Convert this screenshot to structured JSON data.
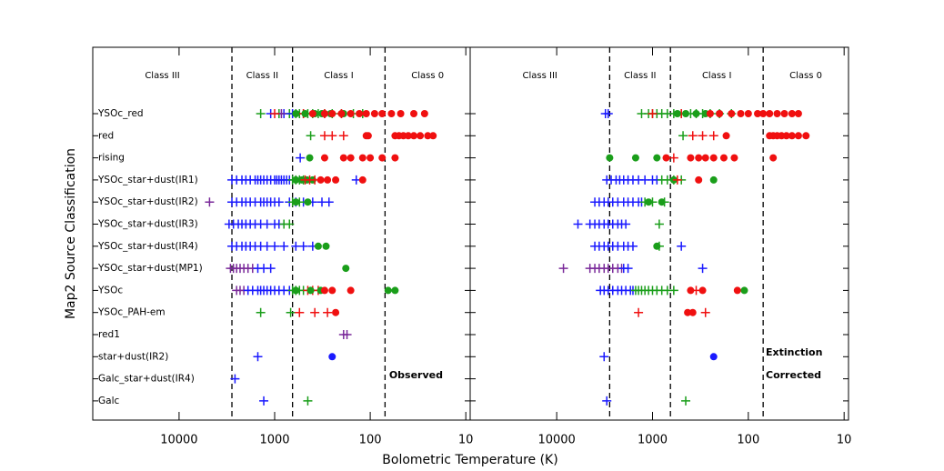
{
  "chart_data": {
    "type": "scatter",
    "x_label": "Bolometric Temperature (K)",
    "y_label": "Map2 Source Classification",
    "log_x": true,
    "xlim": [
      80000,
      9
    ],
    "xticks": [
      10000,
      1000,
      100,
      10
    ],
    "categories": [
      "YSOc_red",
      "red",
      "rising",
      "YSOc_star+dust(IR1)",
      "YSOc_star+dust(IR2)",
      "YSOc_star+dust(IR3)",
      "YSOc_star+dust(IR4)",
      "YSOc_star+dust(MP1)",
      "YSOc",
      "YSOc_PAH-em",
      "red1",
      "star+dust(IR2)",
      "Galc_star+dust(IR4)",
      "Galc"
    ],
    "class_boundaries": [
      2800,
      650,
      70
    ],
    "class_labels": [
      "Class III",
      "Class II",
      "Class I",
      "Class 0"
    ],
    "panels": [
      {
        "annotations": [
          "Observed"
        ],
        "rows": [
          [
            {
              "color": "#1a9e1a",
              "marker": "plus",
              "x": [
                1400,
                900,
                700,
                600,
                550,
                500,
                450,
                400,
                350,
                300,
                250,
                200,
                150,
                120
              ]
            },
            {
              "color": "#1a1aff",
              "marker": "plus",
              "x": [
                1100,
                800,
                650
              ]
            },
            {
              "color": "#7a2a9a",
              "marker": "plus",
              "x": [
                850
              ]
            },
            {
              "color": "#f01010",
              "marker": "plus",
              "x": [
                1000,
                500,
                300,
                200
              ]
            },
            {
              "color": "#1a9e1a",
              "marker": "circle",
              "x": [
                600,
                480,
                380,
                320,
                260,
                190
              ]
            },
            {
              "color": "#f01010",
              "marker": "circle",
              "x": [
                400,
                300,
                250,
                200,
                160,
                130,
                110,
                90,
                75,
                60,
                48,
                35,
                27
              ]
            }
          ],
          [
            {
              "color": "#1a9e1a",
              "marker": "plus",
              "x": [
                420
              ]
            },
            {
              "color": "#f01010",
              "marker": "plus",
              "x": [
                300,
                250,
                190
              ]
            },
            {
              "color": "#f01010",
              "marker": "circle",
              "x": [
                110,
                105,
                55,
                50,
                45,
                40,
                35,
                30,
                25,
                22
              ]
            }
          ],
          [
            {
              "color": "#1a1aff",
              "marker": "plus",
              "x": [
                540
              ]
            },
            {
              "color": "#1a9e1a",
              "marker": "circle",
              "x": [
                430
              ]
            },
            {
              "color": "#f01010",
              "marker": "circle",
              "x": [
                300,
                190,
                160,
                120,
                100,
                75,
                55
              ]
            }
          ],
          [
            {
              "color": "#1a1aff",
              "marker": "plus",
              "x": [
                2800,
                2500,
                2200,
                2000,
                1800,
                1600,
                1500,
                1400,
                1300,
                1200,
                1100,
                1000,
                950,
                900,
                850,
                800,
                750,
                700,
                140
              ]
            },
            {
              "color": "#1a9e1a",
              "marker": "plus",
              "x": [
                650,
                600,
                550,
                500
              ]
            },
            {
              "color": "#1a9e1a",
              "marker": "circle",
              "x": [
                600,
                520,
                460,
                400
              ]
            },
            {
              "color": "#f01010",
              "marker": "plus",
              "x": [
                480,
                430,
                380
              ]
            },
            {
              "color": "#f01010",
              "marker": "circle",
              "x": [
                330,
                280,
                230,
                120
              ]
            }
          ],
          [
            {
              "color": "#7a2a9a",
              "marker": "plus",
              "x": [
                4800
              ]
            },
            {
              "color": "#1a1aff",
              "marker": "plus",
              "x": [
                2800,
                2500,
                2200,
                2000,
                1800,
                1600,
                1400,
                1300,
                1200,
                1100,
                1000,
                900,
                700,
                600,
                500,
                400,
                320,
                270
              ]
            },
            {
              "color": "#1a9e1a",
              "marker": "plus",
              "x": [
                650,
                550
              ]
            },
            {
              "color": "#1a9e1a",
              "marker": "circle",
              "x": [
                600,
                450
              ]
            }
          ],
          [
            {
              "color": "#1a1aff",
              "marker": "plus",
              "x": [
                3000,
                2700,
                2400,
                2200,
                2000,
                1800,
                1600,
                1400,
                1200,
                1000,
                900
              ]
            },
            {
              "color": "#1a9e1a",
              "marker": "plus",
              "x": [
                800,
                700
              ]
            }
          ],
          [
            {
              "color": "#1a1aff",
              "marker": "plus",
              "x": [
                2800,
                2500,
                2200,
                2000,
                1800,
                1600,
                1400,
                1200,
                1000,
                800,
                600,
                500,
                400
              ]
            },
            {
              "color": "#1a9e1a",
              "marker": "circle",
              "x": [
                350,
                290
              ]
            }
          ],
          [
            {
              "color": "#7a2a9a",
              "marker": "plus",
              "x": [
                2900,
                2700,
                2500,
                2300,
                2100,
                1900,
                1700
              ]
            },
            {
              "color": "#1a1aff",
              "marker": "plus",
              "x": [
                1500,
                1300,
                1100
              ]
            },
            {
              "color": "#1a9e1a",
              "marker": "circle",
              "x": [
                180
              ]
            }
          ],
          [
            {
              "color": "#7a2a9a",
              "marker": "plus",
              "x": [
                2500,
                2300,
                2100
              ]
            },
            {
              "color": "#1a1aff",
              "marker": "plus",
              "x": [
                1900,
                1700,
                1500,
                1400,
                1300,
                1200,
                1100,
                1000,
                900,
                800,
                700
              ]
            },
            {
              "color": "#1a9e1a",
              "marker": "plus",
              "x": [
                650,
                600,
                550,
                500
              ]
            },
            {
              "color": "#f01010",
              "marker": "plus",
              "x": [
                450,
                400,
                350
              ]
            },
            {
              "color": "#1a9e1a",
              "marker": "circle",
              "x": [
                600,
                420,
                330,
                65,
                55
              ]
            },
            {
              "color": "#f01010",
              "marker": "circle",
              "x": [
                300,
                250,
                160
              ]
            }
          ],
          [
            {
              "color": "#1a9e1a",
              "marker": "plus",
              "x": [
                1400,
                680
              ]
            },
            {
              "color": "#f01010",
              "marker": "plus",
              "x": [
                550,
                380,
                280
              ]
            },
            {
              "color": "#f01010",
              "marker": "circle",
              "x": [
                230
              ]
            }
          ],
          [
            {
              "color": "#7a2a9a",
              "marker": "plus",
              "x": [
                190,
                175
              ]
            }
          ],
          [
            {
              "color": "#1a1aff",
              "marker": "plus",
              "x": [
                1500
              ]
            },
            {
              "color": "#1a1aff",
              "marker": "circle",
              "x": [
                250
              ]
            }
          ],
          [
            {
              "color": "#1a1aff",
              "marker": "plus",
              "x": [
                2600
              ]
            }
          ],
          [
            {
              "color": "#1a1aff",
              "marker": "plus",
              "x": [
                1300
              ]
            },
            {
              "color": "#1a9e1a",
              "marker": "plus",
              "x": [
                450
              ]
            }
          ]
        ]
      },
      {
        "annotations": [
          "Extinction",
          "Corrected"
        ],
        "rows": [
          [
            {
              "color": "#1a1aff",
              "marker": "plus",
              "x": [
                3100,
                2900
              ]
            },
            {
              "color": "#1a9e1a",
              "marker": "plus",
              "x": [
                1300,
                1100,
                1000,
                900,
                800,
                700,
                600,
                500,
                400,
                350,
                300,
                250,
                200,
                150
              ]
            },
            {
              "color": "#f01010",
              "marker": "plus",
              "x": [
                1000,
                500
              ]
            },
            {
              "color": "#1a9e1a",
              "marker": "circle",
              "x": [
                550,
                450,
                350,
                280,
                200
              ]
            },
            {
              "color": "#f01010",
              "marker": "circle",
              "x": [
                250,
                200,
                150,
                120,
                100,
                80,
                70,
                60,
                50,
                42,
                35,
                30
              ]
            }
          ],
          [
            {
              "color": "#1a9e1a",
              "marker": "plus",
              "x": [
                480
              ]
            },
            {
              "color": "#f01010",
              "marker": "plus",
              "x": [
                380,
                300,
                230
              ]
            },
            {
              "color": "#f01010",
              "marker": "circle",
              "x": [
                170,
                60,
                55,
                50,
                45,
                40,
                35,
                30,
                25
              ]
            }
          ],
          [
            {
              "color": "#1a9e1a",
              "marker": "circle",
              "x": [
                2800,
                1500,
                900
              ]
            },
            {
              "color": "#f01010",
              "marker": "plus",
              "x": [
                600
              ]
            },
            {
              "color": "#f01010",
              "marker": "circle",
              "x": [
                720,
                400,
                330,
                280,
                230,
                180,
                140,
                55
              ]
            }
          ],
          [
            {
              "color": "#1a1aff",
              "marker": "plus",
              "x": [
                3000,
                2700,
                2400,
                2200,
                2000,
                1800,
                1600,
                1400,
                1200,
                1000,
                900
              ]
            },
            {
              "color": "#1a9e1a",
              "marker": "plus",
              "x": [
                800,
                700,
                600,
                500
              ]
            },
            {
              "color": "#1a9e1a",
              "marker": "circle",
              "x": [
                600,
                230
              ]
            },
            {
              "color": "#f01010",
              "marker": "plus",
              "x": [
                550
              ]
            },
            {
              "color": "#f01010",
              "marker": "circle",
              "x": [
                330
              ]
            }
          ],
          [
            {
              "color": "#1a1aff",
              "marker": "plus",
              "x": [
                4000,
                3600,
                3200,
                2900,
                2600,
                2300,
                2000,
                1800,
                1600,
                1400,
                1300
              ]
            },
            {
              "color": "#1a9e1a",
              "marker": "plus",
              "x": [
                1200,
                1000,
                750
              ]
            },
            {
              "color": "#1a9e1a",
              "marker": "circle",
              "x": [
                1100,
                800
              ]
            }
          ],
          [
            {
              "color": "#1a1aff",
              "marker": "plus",
              "x": [
                6000,
                4500,
                4000,
                3600,
                3200,
                2900,
                2600,
                2300,
                2100,
                1900
              ]
            },
            {
              "color": "#1a9e1a",
              "marker": "plus",
              "x": [
                850
              ]
            }
          ],
          [
            {
              "color": "#1a1aff",
              "marker": "plus",
              "x": [
                4000,
                3600,
                3200,
                2900,
                2600,
                2300,
                2000,
                1800,
                1600,
                500
              ]
            },
            {
              "color": "#1a9e1a",
              "marker": "circle",
              "x": [
                900
              ]
            },
            {
              "color": "#1a9e1a",
              "marker": "plus",
              "x": [
                850
              ]
            }
          ],
          [
            {
              "color": "#7a2a9a",
              "marker": "plus",
              "x": [
                8500,
                4500,
                4000,
                3600,
                3200,
                2900,
                2600,
                2300,
                2100
              ]
            },
            {
              "color": "#1a1aff",
              "marker": "plus",
              "x": [
                2000,
                1800,
                300
              ]
            }
          ],
          [
            {
              "color": "#1a1aff",
              "marker": "plus",
              "x": [
                3500,
                3200,
                2900,
                2600,
                2300,
                2100,
                1900,
                1700,
                1600
              ]
            },
            {
              "color": "#1a9e1a",
              "marker": "plus",
              "x": [
                1500,
                1400,
                1300,
                1200,
                1100,
                1000,
                900,
                800,
                700,
                600
              ]
            },
            {
              "color": "#f01010",
              "marker": "plus",
              "x": [
                350
              ]
            },
            {
              "color": "#f01010",
              "marker": "circle",
              "x": [
                400,
                300,
                130
              ]
            },
            {
              "color": "#1a9e1a",
              "marker": "circle",
              "x": [
                110
              ]
            }
          ],
          [
            {
              "color": "#f01010",
              "marker": "plus",
              "x": [
                1400,
                280
              ]
            },
            {
              "color": "#f01010",
              "marker": "circle",
              "x": [
                430,
                380
              ]
            }
          ],
          [],
          [
            {
              "color": "#1a1aff",
              "marker": "plus",
              "x": [
                3200
              ]
            },
            {
              "color": "#1a1aff",
              "marker": "circle",
              "x": [
                230
              ]
            }
          ],
          [],
          [
            {
              "color": "#1a1aff",
              "marker": "plus",
              "x": [
                3000
              ]
            },
            {
              "color": "#1a9e1a",
              "marker": "plus",
              "x": [
                450
              ]
            }
          ]
        ]
      }
    ]
  }
}
